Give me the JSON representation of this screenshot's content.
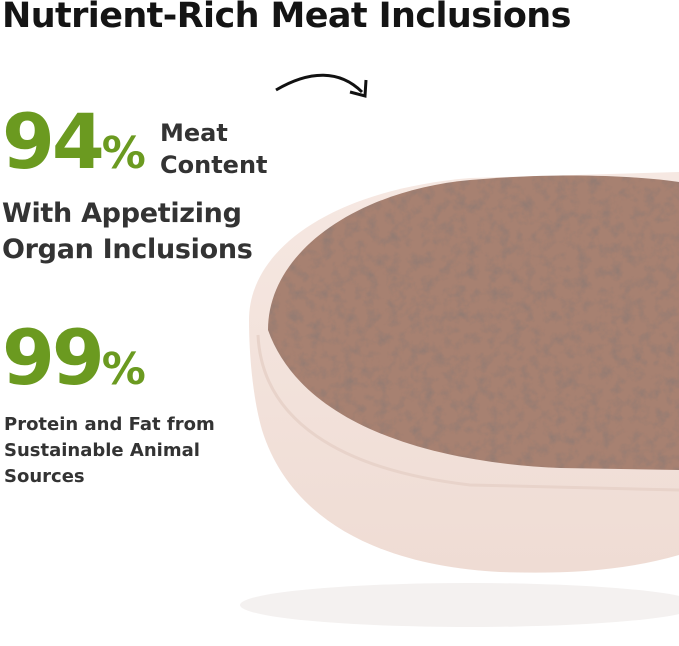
{
  "title": "Nutrient-Rich Meat Inclusions",
  "stats": [
    {
      "number": "94",
      "unit": "%",
      "label_lines": [
        "Meat",
        "Content"
      ],
      "sub_lines": [
        "With Appetizing",
        "Organ Inclusions"
      ]
    },
    {
      "number": "99",
      "unit": "%",
      "sub_lines": [
        "Protein and Fat from",
        "Sustainable Animal",
        "Sources"
      ]
    }
  ],
  "colors": {
    "accent_green": "#6b9a20",
    "text": "#333333",
    "bowl": "#f3e3dd",
    "meat": "#a88272"
  },
  "image": {
    "subject": "bowl-of-wet-food",
    "arrow_icon": "curved-arrow"
  }
}
